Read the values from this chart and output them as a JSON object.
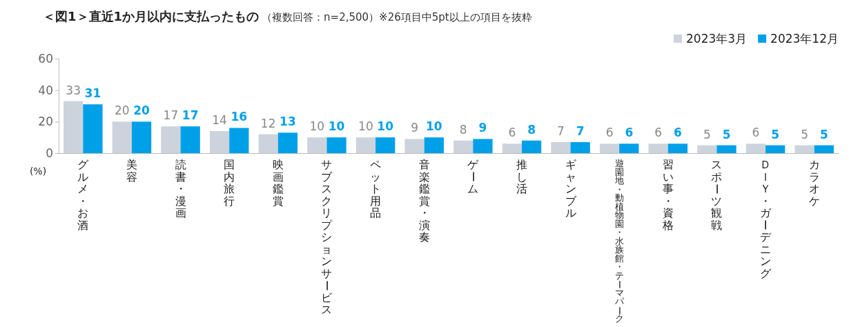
{
  "chart_data": {
    "type": "bar",
    "title": "＜図1＞直近1か月以内に支払ったもの",
    "subtitle": "（複数回答：n=2,500）※26項目中5pt以上の項目を抜粋",
    "ylabel": "(%)",
    "categories": [
      "グルメ・お酒",
      "美容",
      "読書・漫画",
      "国内旅行",
      "映画鑑賞",
      "サブスクリプションサービス",
      "ペット用品",
      "音楽鑑賞・演奏",
      "ゲーム",
      "推し活",
      "ギャンブル",
      "遊園地・動植物園・水族館・テーマパーク",
      "習い事・資格",
      "スポーツ観戦",
      "ＤＩＹ・ガーデニング",
      "カラオケ"
    ],
    "series": [
      {
        "name": "2023年3月",
        "color": "#cdd3dc",
        "values": [
          33,
          20,
          17,
          14,
          12,
          10,
          10,
          9,
          8,
          6,
          7,
          6,
          6,
          5,
          6,
          5
        ]
      },
      {
        "name": "2023年12月",
        "color": "#00a0e9",
        "values": [
          31,
          20,
          17,
          16,
          13,
          10,
          10,
          10,
          9,
          8,
          7,
          6,
          6,
          5,
          5,
          5
        ]
      }
    ],
    "ylim": [
      0,
      60
    ],
    "yticks": [
      0,
      20,
      40,
      60
    ],
    "grid": false,
    "legend": "top right",
    "data_labels": true
  }
}
